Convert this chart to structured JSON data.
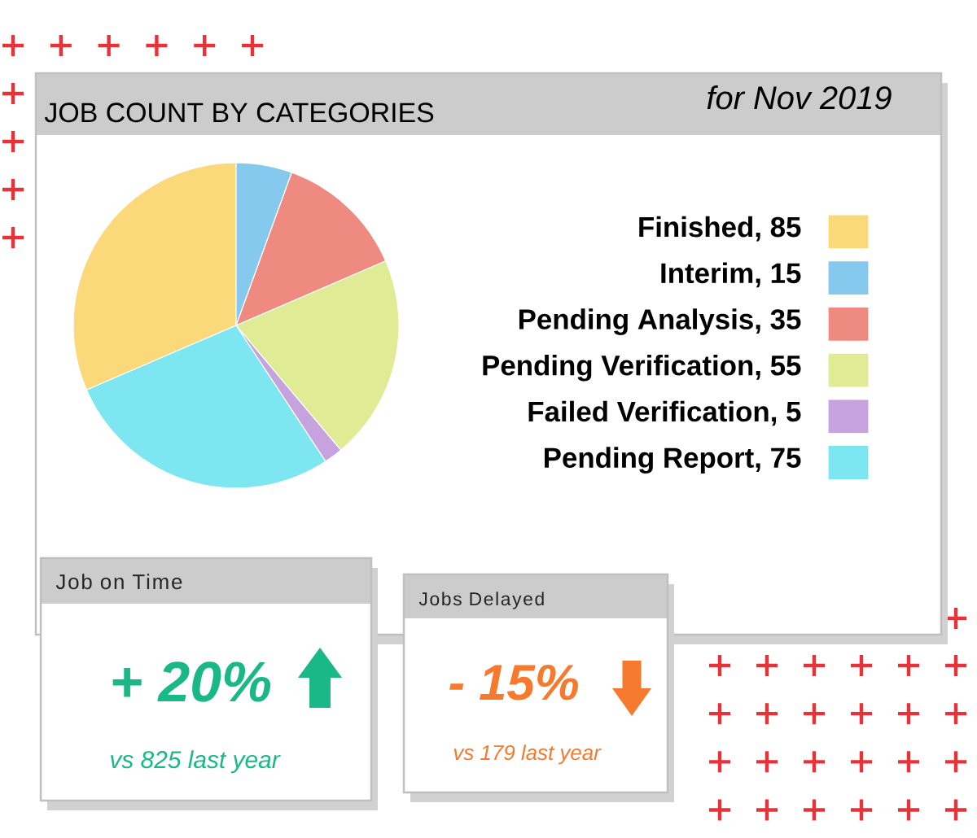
{
  "chart_data": [
    {
      "type": "pie",
      "title": "JOB COUNT BY CATEGORIES",
      "subtitle": "for Nov 2019",
      "categories": [
        "Finished, 85",
        "Interim, 15",
        "Pending Analysis, 35",
        "Pending Verification, 55",
        "Failed Verification, 5",
        "Pending Report, 75"
      ],
      "values": [
        85,
        15,
        35,
        55,
        5,
        75
      ],
      "colors": [
        "#fbd87a",
        "#86c9ef",
        "#ef8a80",
        "#dfeb95",
        "#c6a2df",
        "#7ee6f1"
      ],
      "legend": "right"
    },
    {
      "type": "other",
      "title": "Job on Time",
      "annotations": [
        "+ 20%",
        "vs 825 last year"
      ],
      "color": "#19b884"
    },
    {
      "type": "other",
      "title": "Jobs Delayed",
      "annotations": [
        "- 15%",
        "vs 179 last year"
      ],
      "color": "#f57a2e"
    }
  ]
}
